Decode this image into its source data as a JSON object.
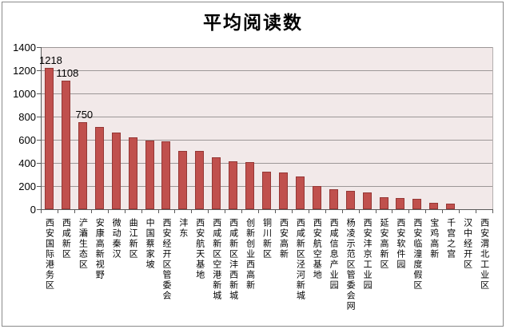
{
  "title": "平均阅读数",
  "colors": {
    "bar_fill": "#C0504D",
    "bar_border": "#953735",
    "plot_background": "#F2E9E9",
    "gridline": "#9c9797",
    "axis": "#5a5a5a",
    "text": "#000000",
    "frame_border": "#8a8a8a"
  },
  "chart_data": {
    "type": "bar",
    "title": "平均阅读数",
    "categories": [
      "西安国际港务区",
      "西咸新区",
      "浐灞生态区",
      "安康高新视野",
      "微动秦汉",
      "曲江新区",
      "中国蔡家坡",
      "西安经开区管委会",
      "沣东",
      "西安航天基地",
      "西咸新区空港新城",
      "西咸新区沣西新城",
      "创新创业西高新",
      "铜川新区",
      "西安高新",
      "西咸新区泾河新城",
      "西安航空基地",
      "西咸信息产业园",
      "杨凌示范区管委会网",
      "西安沣京工业园",
      "延安高新区",
      "西安软件园",
      "西安临潼度假区",
      "宝鸡高新",
      "千宫之宫",
      "汉中经开区",
      "西安渭北工业区"
    ],
    "values": [
      1218,
      1108,
      750,
      710,
      665,
      620,
      595,
      585,
      505,
      500,
      450,
      415,
      410,
      325,
      320,
      280,
      200,
      175,
      160,
      145,
      105,
      95,
      90,
      55,
      45,
      0,
      0
    ],
    "data_labels": [
      "1218",
      "1108",
      "750"
    ],
    "xlabel": "",
    "ylabel": "",
    "ylim": [
      0,
      1400
    ],
    "ytick_step": 200,
    "ytick_labels": [
      "1400",
      "1200",
      "1000",
      "800",
      "600",
      "400",
      "200",
      "0"
    ],
    "grid": true,
    "legend": false
  }
}
